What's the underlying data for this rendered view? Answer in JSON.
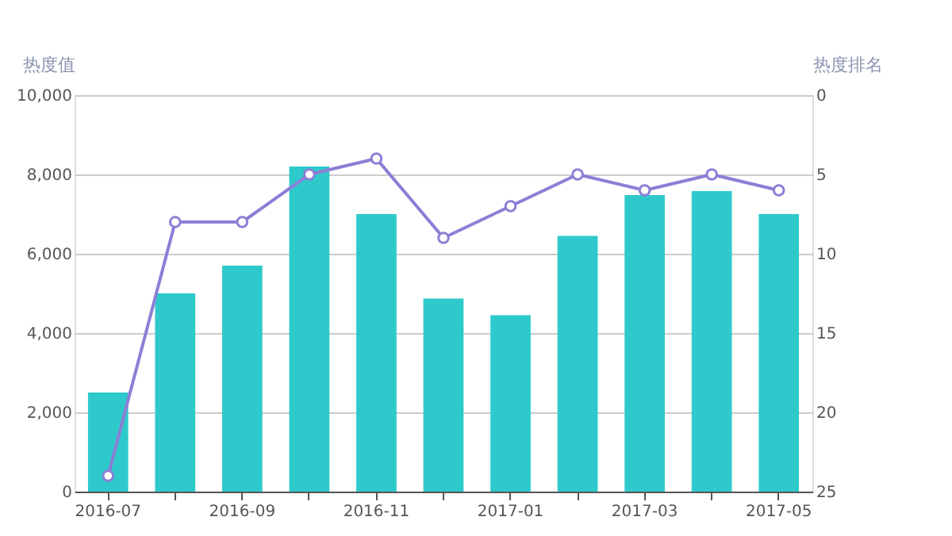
{
  "chart_data": {
    "type": "bar",
    "ylabel": "热度值",
    "y2label": "热度排名",
    "categories": [
      "2016-07",
      null,
      "2016-09",
      null,
      "2016-11",
      null,
      "2017-01",
      null,
      "2017-03",
      null,
      "2017-05"
    ],
    "series": [
      {
        "color": "#2ecacb",
        "values": [
          2500,
          5000,
          5700,
          8200,
          7000,
          4870,
          4450,
          6450,
          7480,
          7580,
          7000
        ]
      },
      {
        "type": "line",
        "axis": "y2",
        "color": "#8b7fd6",
        "marker": "circle",
        "line_style": "solid",
        "values": [
          24,
          8,
          8,
          5,
          4,
          9,
          7,
          5,
          6,
          5,
          6
        ]
      }
    ],
    "ylim": [
      0,
      10000
    ],
    "yticks": [
      0,
      {
        "value": 2000,
        "label": "2,000"
      },
      {
        "value": 4000,
        "label": "4,000"
      },
      {
        "value": 6000,
        "label": "6,000"
      },
      {
        "value": 8000,
        "label": "8,000"
      },
      {
        "value": 10000,
        "label": "10,000"
      }
    ],
    "y2lim": [
      25,
      0
    ],
    "y2ticks": [
      0,
      5,
      10,
      15,
      20,
      25
    ],
    "grid": "y"
  }
}
